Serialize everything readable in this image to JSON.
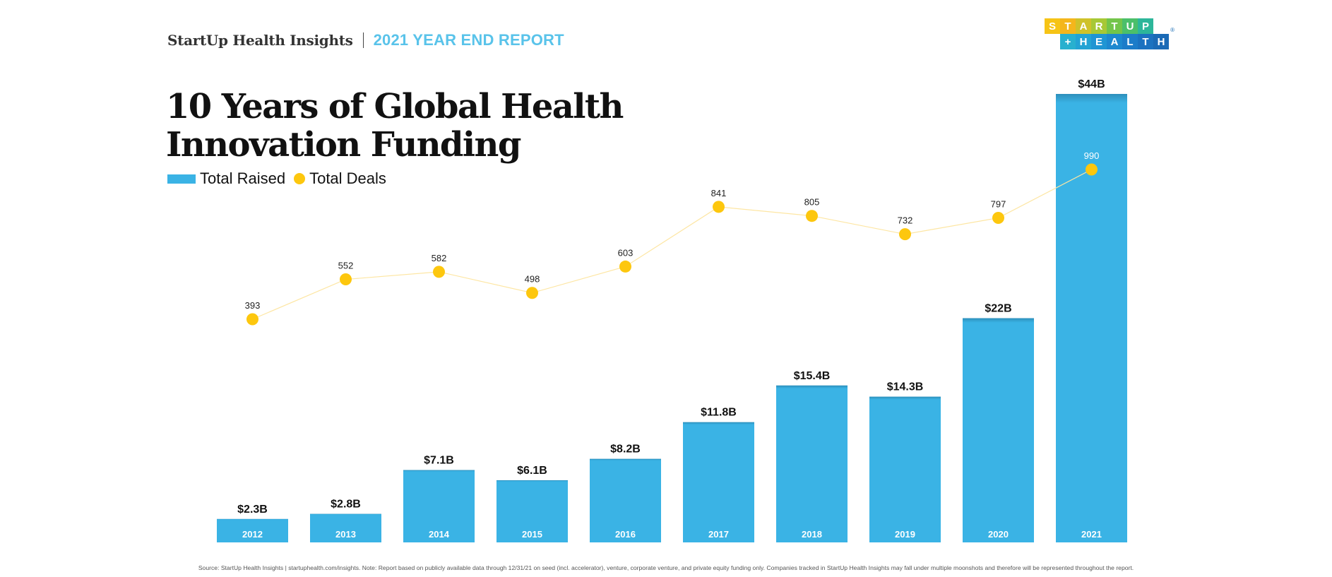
{
  "header": {
    "brand": "StartUp Health Insights",
    "separator": "|",
    "report": "2021 YEAR END REPORT"
  },
  "logo": {
    "top_letters": [
      "S",
      "T",
      "A",
      "R",
      "T",
      "U",
      "P"
    ],
    "bottom_letters": [
      "+",
      "H",
      "E",
      "A",
      "L",
      "T",
      "H"
    ],
    "top_colors": [
      "#f6c416",
      "#f4b61c",
      "#cfc22a",
      "#a7c836",
      "#73c54a",
      "#4bbf6a",
      "#2db69a"
    ],
    "bottom_colors": [
      "#28b0cf",
      "#23a3d4",
      "#1f95d3",
      "#1d88cf",
      "#1c7cc9",
      "#1b72c0",
      "#1a6ab6"
    ],
    "registered": "®"
  },
  "title": {
    "line1": "10 Years of Global Health",
    "line2": "Innovation Funding"
  },
  "legend": {
    "bars_label": "Total Raised",
    "line_label": "Total Deals"
  },
  "chart_data": {
    "type": "bar",
    "categories": [
      "2012",
      "2013",
      "2014",
      "2015",
      "2016",
      "2017",
      "2018",
      "2019",
      "2020",
      "2021"
    ],
    "series": [
      {
        "name": "Total Raised",
        "type": "bar",
        "values": [
          2.3,
          2.8,
          7.1,
          6.1,
          8.2,
          11.8,
          15.4,
          14.3,
          22,
          44
        ],
        "labels": [
          "$2.3B",
          "$2.8B",
          "$7.1B",
          "$6.1B",
          "$8.2B",
          "$11.8B",
          "$15.4B",
          "$14.3B",
          "$22B",
          "$44B"
        ],
        "color": "#3ab3e5"
      },
      {
        "name": "Total Deals",
        "type": "line",
        "values": [
          393,
          552,
          582,
          498,
          603,
          841,
          805,
          732,
          797,
          990
        ],
        "color": "#fdc70e"
      }
    ]
  },
  "footer": {
    "source": "Source: StartUp Health Insights | startuphealth.com/insights. Note: Report based on publicly available data through 12/31/21 on seed (incl. accelerator), venture, corporate venture, and private equity funding only. Companies tracked in StartUp Health Insights may fall under multiple moonshots and therefore will be represented throughout the report."
  }
}
